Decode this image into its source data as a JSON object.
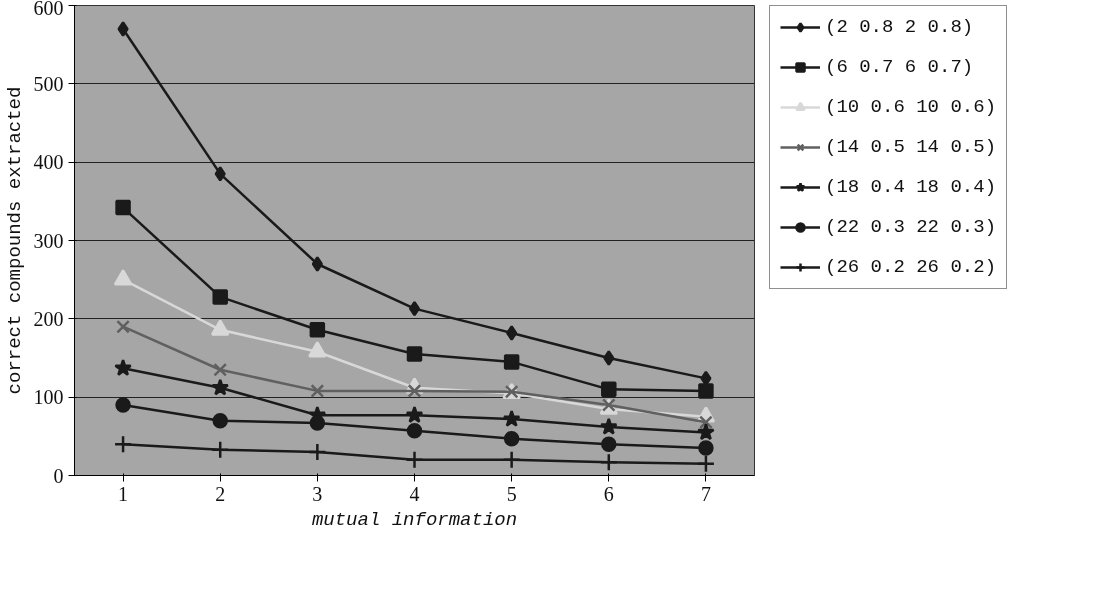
{
  "chart_data": {
    "type": "line",
    "xlabel": "mutual information",
    "ylabel": "correct compounds extracted",
    "x": [
      1,
      2,
      3,
      4,
      5,
      6,
      7
    ],
    "xlim": [
      0.5,
      7.5
    ],
    "xticks": [
      1,
      2,
      3,
      4,
      5,
      6,
      7
    ],
    "ylim": [
      0,
      600
    ],
    "yticks": [
      0,
      100,
      200,
      300,
      400,
      500,
      600
    ],
    "grid": "y",
    "legend": "right",
    "series": [
      {
        "name": "(2 0.8 2 0.8)",
        "color": "#1a1a1a",
        "marker": "diamond",
        "values": [
          570,
          385,
          270,
          213,
          182,
          150,
          124
        ]
      },
      {
        "name": "(6 0.7 6 0.7)",
        "color": "#1a1a1a",
        "marker": "square",
        "values": [
          342,
          228,
          186,
          155,
          145,
          110,
          108
        ]
      },
      {
        "name": "(10 0.6 10 0.6)",
        "color": "#d8d8d8",
        "marker": "triangle",
        "values": [
          250,
          186,
          158,
          112,
          105,
          85,
          75
        ]
      },
      {
        "name": "(14 0.5 14 0.5)",
        "color": "#606060",
        "marker": "x",
        "values": [
          190,
          135,
          108,
          108,
          107,
          90,
          68
        ]
      },
      {
        "name": "(18 0.4 18 0.4)",
        "color": "#1a1a1a",
        "marker": "star",
        "values": [
          137,
          112,
          77,
          77,
          72,
          62,
          55
        ]
      },
      {
        "name": "(22 0.3 22 0.3)",
        "color": "#1a1a1a",
        "marker": "circle",
        "values": [
          90,
          70,
          67,
          57,
          47,
          40,
          35
        ]
      },
      {
        "name": "(26 0.2 26 0.2)",
        "color": "#1a1a1a",
        "marker": "cross",
        "values": [
          40,
          33,
          30,
          20,
          20,
          17,
          15
        ]
      }
    ]
  }
}
